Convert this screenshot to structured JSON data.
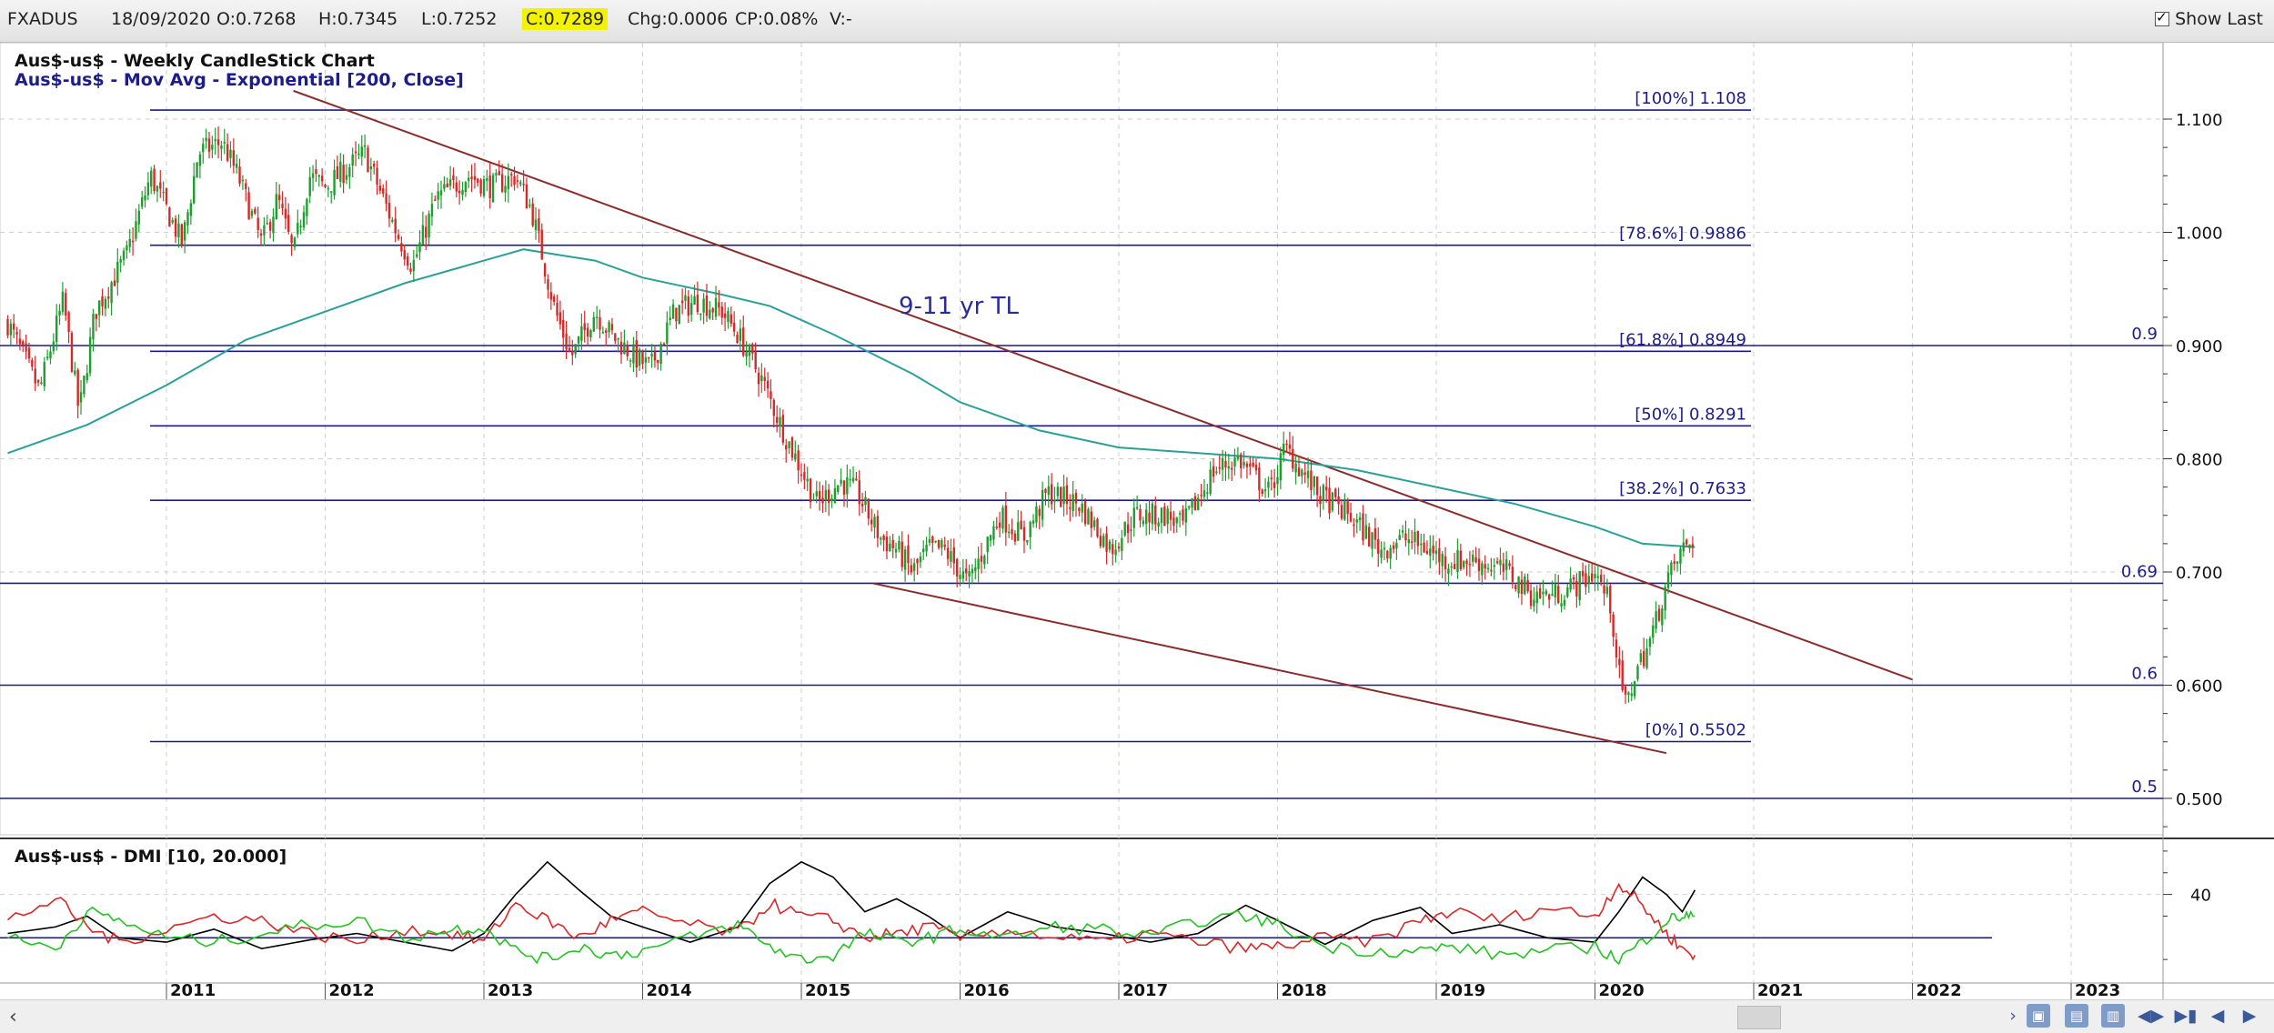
{
  "toolbar": {
    "symbol": "FXADUS",
    "date": "18/09/2020",
    "open": "O:0.7268",
    "high": "H:0.7345",
    "low": "L:0.7252",
    "close": "C:0.7289",
    "change": "Chg:0.0006",
    "change_pct": "CP:0.08%",
    "volume": "V:-",
    "show_last": "Show Last"
  },
  "chart_data": [
    {
      "type": "candlestick",
      "title": "Aus$-us$ - Weekly CandleStick Chart",
      "subtitle": "Aus$-us$ - Mov Avg - Exponential [200, Close]",
      "x_ticks": [
        "2011",
        "2012",
        "2013",
        "2014",
        "2015",
        "2016",
        "2017",
        "2018",
        "2019",
        "2020",
        "2021",
        "2022",
        "2023"
      ],
      "y_ticks": [
        "1.100",
        "1.000",
        "0.900",
        "0.800",
        "0.700",
        "0.600",
        "0.500"
      ],
      "ylim": [
        0.465,
        1.125
      ],
      "close_path": [
        [
          2010.0,
          0.92
        ],
        [
          2010.2,
          0.86
        ],
        [
          2010.35,
          0.94
        ],
        [
          2010.45,
          0.84
        ],
        [
          2010.55,
          0.93
        ],
        [
          2010.75,
          0.98
        ],
        [
          2010.9,
          1.05
        ],
        [
          2011.1,
          0.99
        ],
        [
          2011.2,
          1.07
        ],
        [
          2011.35,
          1.08
        ],
        [
          2011.45,
          1.05
        ],
        [
          2011.6,
          0.99
        ],
        [
          2011.7,
          1.03
        ],
        [
          2011.8,
          0.98
        ],
        [
          2011.9,
          1.05
        ],
        [
          2012.0,
          1.04
        ],
        [
          2012.25,
          1.07
        ],
        [
          2012.45,
          1.0
        ],
        [
          2012.55,
          0.97
        ],
        [
          2012.7,
          1.03
        ],
        [
          2012.9,
          1.05
        ],
        [
          2013.05,
          1.04
        ],
        [
          2013.2,
          1.05
        ],
        [
          2013.3,
          1.02
        ],
        [
          2013.45,
          0.93
        ],
        [
          2013.55,
          0.89
        ],
        [
          2013.7,
          0.93
        ],
        [
          2013.8,
          0.91
        ],
        [
          2013.95,
          0.89
        ],
        [
          2014.05,
          0.88
        ],
        [
          2014.2,
          0.93
        ],
        [
          2014.35,
          0.94
        ],
        [
          2014.5,
          0.93
        ],
        [
          2014.6,
          0.91
        ],
        [
          2014.75,
          0.87
        ],
        [
          2014.9,
          0.82
        ],
        [
          2015.0,
          0.79
        ],
        [
          2015.1,
          0.76
        ],
        [
          2015.25,
          0.78
        ],
        [
          2015.35,
          0.77
        ],
        [
          2015.5,
          0.73
        ],
        [
          2015.6,
          0.72
        ],
        [
          2015.7,
          0.7
        ],
        [
          2015.8,
          0.72
        ],
        [
          2015.9,
          0.72
        ],
        [
          2016.05,
          0.69
        ],
        [
          2016.25,
          0.75
        ],
        [
          2016.4,
          0.73
        ],
        [
          2016.55,
          0.77
        ],
        [
          2016.75,
          0.76
        ],
        [
          2016.95,
          0.72
        ],
        [
          2017.1,
          0.75
        ],
        [
          2017.3,
          0.75
        ],
        [
          2017.4,
          0.74
        ],
        [
          2017.6,
          0.79
        ],
        [
          2017.75,
          0.8
        ],
        [
          2017.95,
          0.77
        ],
        [
          2018.05,
          0.81
        ],
        [
          2018.25,
          0.77
        ],
        [
          2018.45,
          0.75
        ],
        [
          2018.65,
          0.72
        ],
        [
          2018.8,
          0.73
        ],
        [
          2018.95,
          0.72
        ],
        [
          2019.05,
          0.71
        ],
        [
          2019.25,
          0.71
        ],
        [
          2019.45,
          0.7
        ],
        [
          2019.6,
          0.68
        ],
        [
          2019.75,
          0.68
        ],
        [
          2019.9,
          0.69
        ],
        [
          2020.0,
          0.7
        ],
        [
          2020.1,
          0.67
        ],
        [
          2020.15,
          0.61
        ],
        [
          2020.2,
          0.58
        ],
        [
          2020.25,
          0.61
        ],
        [
          2020.35,
          0.64
        ],
        [
          2020.45,
          0.69
        ],
        [
          2020.55,
          0.72
        ],
        [
          2020.63,
          0.73
        ]
      ],
      "ema200_path": [
        [
          2010.0,
          0.805
        ],
        [
          2010.5,
          0.83
        ],
        [
          2011.0,
          0.865
        ],
        [
          2011.5,
          0.905
        ],
        [
          2012.0,
          0.93
        ],
        [
          2012.5,
          0.955
        ],
        [
          2013.0,
          0.975
        ],
        [
          2013.25,
          0.985
        ],
        [
          2013.7,
          0.975
        ],
        [
          2014.0,
          0.96
        ],
        [
          2014.5,
          0.945
        ],
        [
          2014.8,
          0.935
        ],
        [
          2015.2,
          0.91
        ],
        [
          2015.7,
          0.875
        ],
        [
          2016.0,
          0.85
        ],
        [
          2016.5,
          0.825
        ],
        [
          2017.0,
          0.81
        ],
        [
          2017.5,
          0.805
        ],
        [
          2018.0,
          0.8
        ],
        [
          2018.5,
          0.79
        ],
        [
          2019.0,
          0.775
        ],
        [
          2019.5,
          0.76
        ],
        [
          2020.0,
          0.74
        ],
        [
          2020.3,
          0.725
        ],
        [
          2020.63,
          0.722
        ]
      ],
      "fib_levels": [
        {
          "label": "[100%] 1.108",
          "value": 1.108
        },
        {
          "label": "[78.6%] 0.9886",
          "value": 0.9886
        },
        {
          "label": "[61.8%] 0.8949",
          "value": 0.8949
        },
        {
          "label": "[50%] 0.8291",
          "value": 0.8291
        },
        {
          "label": "[38.2%] 0.7633",
          "value": 0.7633
        },
        {
          "label": "[0%] 0.5502",
          "value": 0.5502
        }
      ],
      "horizontal_levels": [
        {
          "label": "0.9",
          "value": 0.9
        },
        {
          "label": "0.69",
          "value": 0.69
        },
        {
          "label": "0.6",
          "value": 0.6
        },
        {
          "label": "0.5",
          "value": 0.5
        }
      ],
      "trendlines": [
        {
          "name": "upper",
          "from": [
            2011.8,
            1.125
          ],
          "to": [
            2022.0,
            0.605
          ]
        },
        {
          "name": "lower",
          "from": [
            2015.45,
            0.69
          ],
          "to": [
            2020.45,
            0.54
          ]
        }
      ],
      "annotation": "9-11 yr TL",
      "colors": {
        "up": "#1e9e2e",
        "down": "#d82828",
        "ema": "#2aa198",
        "level": "#1c1c8a",
        "trend": "#8b2b2b"
      }
    },
    {
      "type": "line",
      "title": "Aus$-us$ - DMI [10, 20.000]",
      "y_ticks": [
        "40"
      ],
      "ylim": [
        0,
        65
      ],
      "reference_level": 20,
      "series": [
        {
          "color": "#000000",
          "points": [
            [
              2010.0,
              22
            ],
            [
              2010.3,
              25
            ],
            [
              2010.5,
              30
            ],
            [
              2010.7,
              20
            ],
            [
              2011.0,
              18
            ],
            [
              2011.3,
              24
            ],
            [
              2011.6,
              15
            ],
            [
              2011.9,
              19
            ],
            [
              2012.2,
              22
            ],
            [
              2012.5,
              18
            ],
            [
              2012.8,
              14
            ],
            [
              2013.0,
              22
            ],
            [
              2013.2,
              40
            ],
            [
              2013.4,
              55
            ],
            [
              2013.6,
              42
            ],
            [
              2013.8,
              30
            ],
            [
              2014.0,
              25
            ],
            [
              2014.3,
              18
            ],
            [
              2014.6,
              25
            ],
            [
              2014.8,
              45
            ],
            [
              2015.0,
              55
            ],
            [
              2015.2,
              48
            ],
            [
              2015.4,
              32
            ],
            [
              2015.6,
              38
            ],
            [
              2015.8,
              30
            ],
            [
              2016.0,
              20
            ],
            [
              2016.3,
              32
            ],
            [
              2016.6,
              25
            ],
            [
              2016.9,
              22
            ],
            [
              2017.2,
              18
            ],
            [
              2017.5,
              22
            ],
            [
              2017.8,
              35
            ],
            [
              2018.0,
              28
            ],
            [
              2018.3,
              17
            ],
            [
              2018.6,
              28
            ],
            [
              2018.9,
              34
            ],
            [
              2019.1,
              22
            ],
            [
              2019.4,
              26
            ],
            [
              2019.7,
              20
            ],
            [
              2020.0,
              18
            ],
            [
              2020.15,
              32
            ],
            [
              2020.3,
              48
            ],
            [
              2020.45,
              40
            ],
            [
              2020.55,
              32
            ],
            [
              2020.63,
              42
            ]
          ]
        },
        {
          "color": "#d82828",
          "points": [
            [
              2010.0,
              28
            ],
            [
              2010.3,
              38
            ],
            [
              2010.5,
              25
            ],
            [
              2010.7,
              18
            ],
            [
              2011.0,
              24
            ],
            [
              2011.3,
              30
            ],
            [
              2011.6,
              28
            ],
            [
              2011.9,
              22
            ],
            [
              2012.2,
              18
            ],
            [
              2012.5,
              24
            ],
            [
              2012.8,
              22
            ],
            [
              2013.0,
              18
            ],
            [
              2013.2,
              36
            ],
            [
              2013.4,
              28
            ],
            [
              2013.6,
              20
            ],
            [
              2013.8,
              28
            ],
            [
              2014.0,
              32
            ],
            [
              2014.3,
              26
            ],
            [
              2014.6,
              22
            ],
            [
              2014.8,
              36
            ],
            [
              2015.0,
              30
            ],
            [
              2015.2,
              28
            ],
            [
              2015.4,
              20
            ],
            [
              2015.6,
              22
            ],
            [
              2015.8,
              25
            ],
            [
              2016.0,
              20
            ],
            [
              2016.3,
              24
            ],
            [
              2016.6,
              20
            ],
            [
              2016.9,
              18
            ],
            [
              2017.2,
              22
            ],
            [
              2017.5,
              18
            ],
            [
              2017.8,
              15
            ],
            [
              2018.0,
              16
            ],
            [
              2018.3,
              20
            ],
            [
              2018.6,
              18
            ],
            [
              2018.9,
              28
            ],
            [
              2019.1,
              32
            ],
            [
              2019.4,
              28
            ],
            [
              2019.7,
              34
            ],
            [
              2020.0,
              30
            ],
            [
              2020.15,
              45
            ],
            [
              2020.3,
              35
            ],
            [
              2020.45,
              22
            ],
            [
              2020.55,
              15
            ],
            [
              2020.63,
              12
            ]
          ]
        },
        {
          "color": "#22c322",
          "points": [
            [
              2010.0,
              20
            ],
            [
              2010.3,
              15
            ],
            [
              2010.5,
              32
            ],
            [
              2010.7,
              28
            ],
            [
              2011.0,
              20
            ],
            [
              2011.3,
              18
            ],
            [
              2011.6,
              22
            ],
            [
              2011.9,
              26
            ],
            [
              2012.2,
              28
            ],
            [
              2012.5,
              20
            ],
            [
              2012.8,
              24
            ],
            [
              2013.0,
              25
            ],
            [
              2013.2,
              14
            ],
            [
              2013.4,
              10
            ],
            [
              2013.6,
              16
            ],
            [
              2013.8,
              12
            ],
            [
              2014.0,
              14
            ],
            [
              2014.3,
              20
            ],
            [
              2014.6,
              26
            ],
            [
              2014.8,
              16
            ],
            [
              2015.0,
              10
            ],
            [
              2015.2,
              12
            ],
            [
              2015.4,
              22
            ],
            [
              2015.6,
              18
            ],
            [
              2015.8,
              20
            ],
            [
              2016.0,
              24
            ],
            [
              2016.3,
              20
            ],
            [
              2016.6,
              25
            ],
            [
              2016.9,
              24
            ],
            [
              2017.2,
              20
            ],
            [
              2017.5,
              28
            ],
            [
              2017.8,
              30
            ],
            [
              2018.0,
              26
            ],
            [
              2018.3,
              16
            ],
            [
              2018.6,
              14
            ],
            [
              2018.9,
              14
            ],
            [
              2019.1,
              16
            ],
            [
              2019.4,
              12
            ],
            [
              2019.7,
              14
            ],
            [
              2020.0,
              16
            ],
            [
              2020.15,
              10
            ],
            [
              2020.3,
              18
            ],
            [
              2020.45,
              28
            ],
            [
              2020.55,
              30
            ],
            [
              2020.63,
              30
            ]
          ]
        }
      ]
    }
  ]
}
